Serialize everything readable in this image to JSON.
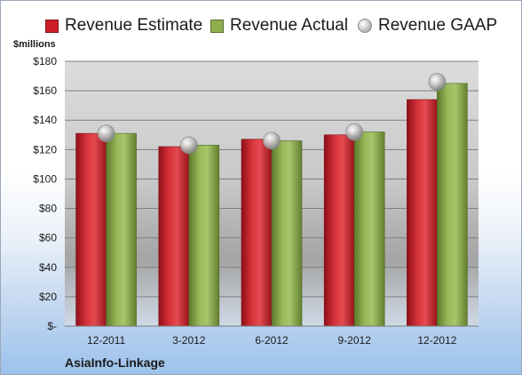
{
  "legend": {
    "estimate_label": "Revenue Estimate",
    "actual_label": "Revenue Actual",
    "gaap_label": "Revenue GAAP"
  },
  "unit_label": "$millions",
  "company": "AsiaInfo-Linkage",
  "colors": {
    "estimate": "#cc1f2a",
    "actual": "#8fae4e",
    "gaap": "#b8b8b8"
  },
  "chart_data": {
    "type": "bar",
    "categories": [
      "12-2011",
      "3-2012",
      "6-2012",
      "9-2012",
      "12-2012"
    ],
    "series": [
      {
        "name": "Revenue Estimate",
        "values": [
          131,
          122,
          127,
          130,
          154
        ]
      },
      {
        "name": "Revenue Actual",
        "values": [
          131,
          123,
          126,
          132,
          165
        ]
      },
      {
        "name": "Revenue GAAP",
        "values": [
          131,
          123,
          126,
          132,
          166
        ]
      }
    ],
    "ylabel": "$millions",
    "ylim": [
      0,
      180
    ],
    "yticks": [
      0,
      20,
      40,
      60,
      80,
      100,
      120,
      140,
      160,
      180
    ],
    "ytick_labels": [
      "$-",
      "$20",
      "$40",
      "$60",
      "$80",
      "$100",
      "$120",
      "$140",
      "$160",
      "$180"
    ],
    "grid": true,
    "legend_position": "top"
  }
}
